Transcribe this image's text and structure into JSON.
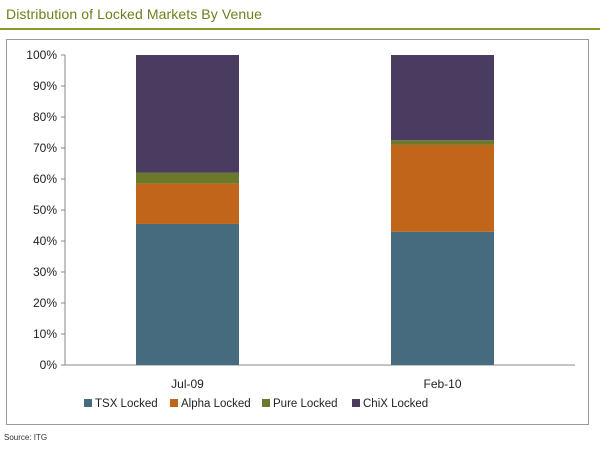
{
  "title": "Distribution of Locked Markets By Venue",
  "source": "Source: ITG",
  "chart_data": {
    "type": "bar",
    "stacked": true,
    "categories": [
      "Jul-09",
      "Feb-10"
    ],
    "series": [
      {
        "name": "TSX Locked",
        "color": "#466b7f",
        "values": [
          45.5,
          43
        ]
      },
      {
        "name": "Alpha Locked",
        "color": "#c0651a",
        "values": [
          13,
          28
        ]
      },
      {
        "name": "Pure Locked",
        "color": "#6b7a2a",
        "values": [
          3.5,
          1.5
        ]
      },
      {
        "name": "ChiX Locked",
        "color": "#4a3b60",
        "values": [
          38,
          27.5
        ]
      }
    ],
    "yticks": [
      "0%",
      "10%",
      "20%",
      "30%",
      "40%",
      "50%",
      "60%",
      "70%",
      "80%",
      "90%",
      "100%"
    ],
    "ylim": [
      0,
      100
    ],
    "legend": "bottom",
    "grid": false
  }
}
